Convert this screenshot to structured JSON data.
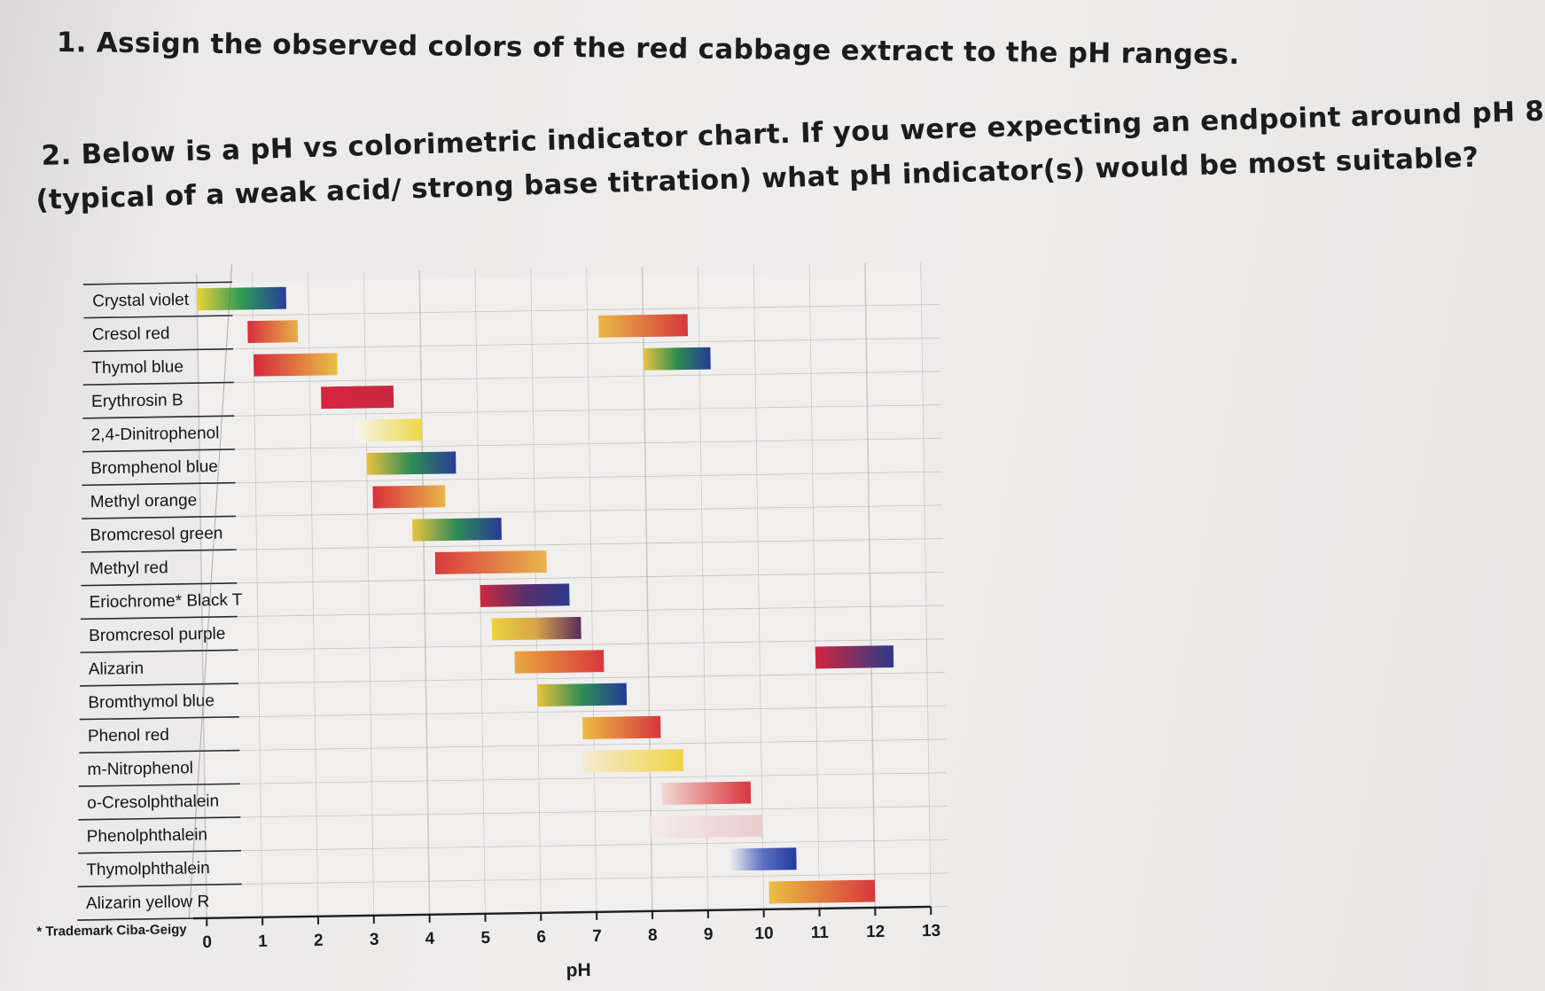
{
  "questions": {
    "q1": "1. Assign the observed colors of the red cabbage extract to the pH ranges.",
    "q2_line1": "2. Below is a pH vs colorimetric indicator chart. If you were expecting an endpoint around pH 8",
    "q2_line2": "(typical of a weak acid/ strong base titration) what pH indicator(s) would be most suitable?"
  },
  "chart_data": {
    "type": "bar",
    "subtype": "range",
    "title": "",
    "xlabel": "pH",
    "ylabel": "",
    "xlim": [
      0,
      13
    ],
    "xticks": [
      0,
      1,
      2,
      3,
      4,
      5,
      6,
      7,
      8,
      9,
      10,
      11,
      12,
      13
    ],
    "grid": true,
    "footnote": "* Trademark Ciba-Geigy",
    "indicators": [
      {
        "name": "Crystal violet",
        "ranges": [
          {
            "from": 0.0,
            "to": 1.6,
            "colors": [
              "#e8d23a",
              "#2e9a55",
              "#2a3d9e"
            ]
          }
        ]
      },
      {
        "name": "Cresol red",
        "ranges": [
          {
            "from": 0.9,
            "to": 1.8,
            "colors": [
              "#d62f3a",
              "#e9b04a"
            ]
          },
          {
            "from": 7.2,
            "to": 8.8,
            "colors": [
              "#e8b948",
              "#d8363c"
            ]
          }
        ]
      },
      {
        "name": "Thymol blue",
        "ranges": [
          {
            "from": 1.0,
            "to": 2.5,
            "colors": [
              "#d5293b",
              "#e9bf48"
            ]
          },
          {
            "from": 8.0,
            "to": 9.2,
            "colors": [
              "#e8c43f",
              "#2f8c52",
              "#243b94"
            ]
          }
        ]
      },
      {
        "name": "Erythrosin B",
        "ranges": [
          {
            "from": 2.2,
            "to": 3.5,
            "colors": [
              "#d6263f",
              "#c9283e"
            ]
          }
        ]
      },
      {
        "name": "2,4-Dinitrophenol",
        "ranges": [
          {
            "from": 2.8,
            "to": 4.0,
            "colors": [
              "#f7f4ef",
              "#f1e59a",
              "#f0d647"
            ]
          }
        ]
      },
      {
        "name": "Bromphenol blue",
        "ranges": [
          {
            "from": 3.0,
            "to": 4.6,
            "colors": [
              "#eac240",
              "#2f8b55",
              "#293c99"
            ]
          }
        ]
      },
      {
        "name": "Methyl orange",
        "ranges": [
          {
            "from": 3.1,
            "to": 4.4,
            "colors": [
              "#d8303a",
              "#e9b54a"
            ]
          }
        ]
      },
      {
        "name": "Bromcresol green",
        "ranges": [
          {
            "from": 3.8,
            "to": 5.4,
            "colors": [
              "#eac33e",
              "#2e8a58",
              "#273b98"
            ]
          }
        ]
      },
      {
        "name": "Methyl red",
        "ranges": [
          {
            "from": 4.2,
            "to": 6.2,
            "colors": [
              "#d93a3e",
              "#eab54c"
            ]
          }
        ]
      },
      {
        "name": "Eriochrome* Black T",
        "ranges": [
          {
            "from": 5.0,
            "to": 6.6,
            "colors": [
              "#d02a3e",
              "#5a2f6a",
              "#2a3a8e"
            ]
          }
        ]
      },
      {
        "name": "Bromcresol purple",
        "ranges": [
          {
            "from": 5.2,
            "to": 6.8,
            "colors": [
              "#ecd33e",
              "#d7a34a",
              "#5b2c5c"
            ]
          }
        ]
      },
      {
        "name": "Alizarin",
        "ranges": [
          {
            "from": 5.6,
            "to": 7.2,
            "colors": [
              "#e9a83e",
              "#d8383c"
            ]
          },
          {
            "from": 11.0,
            "to": 12.4,
            "colors": [
              "#d3253f",
              "#2b3a8a"
            ]
          }
        ]
      },
      {
        "name": "Bromthymol blue",
        "ranges": [
          {
            "from": 6.0,
            "to": 7.6,
            "colors": [
              "#e9c23c",
              "#2e8c57",
              "#263a96"
            ]
          }
        ]
      },
      {
        "name": "Phenol red",
        "ranges": [
          {
            "from": 6.8,
            "to": 8.2,
            "colors": [
              "#ebbc46",
              "#d8363e"
            ]
          }
        ]
      },
      {
        "name": "m-Nitrophenol",
        "ranges": [
          {
            "from": 6.8,
            "to": 8.6,
            "colors": [
              "#f4ead0",
              "#efd545"
            ]
          }
        ]
      },
      {
        "name": "o-Cresolphthalein",
        "ranges": [
          {
            "from": 8.2,
            "to": 9.8,
            "colors": [
              "#f2d9d4",
              "#d8363c"
            ]
          }
        ]
      },
      {
        "name": "Phenolphthalein",
        "ranges": [
          {
            "from": 8.0,
            "to": 10.0,
            "colors": [
              "#f3ecea",
              "#e9cccc"
            ]
          }
        ]
      },
      {
        "name": "Thymolphthalein",
        "ranges": [
          {
            "from": 9.4,
            "to": 10.6,
            "colors": [
              "#f1eef0",
              "#5b71c4",
              "#23399a"
            ]
          }
        ]
      },
      {
        "name": "Alizarin yellow R",
        "ranges": [
          {
            "from": 10.1,
            "to": 12.0,
            "colors": [
              "#eac042",
              "#d8373c"
            ]
          }
        ]
      }
    ]
  }
}
